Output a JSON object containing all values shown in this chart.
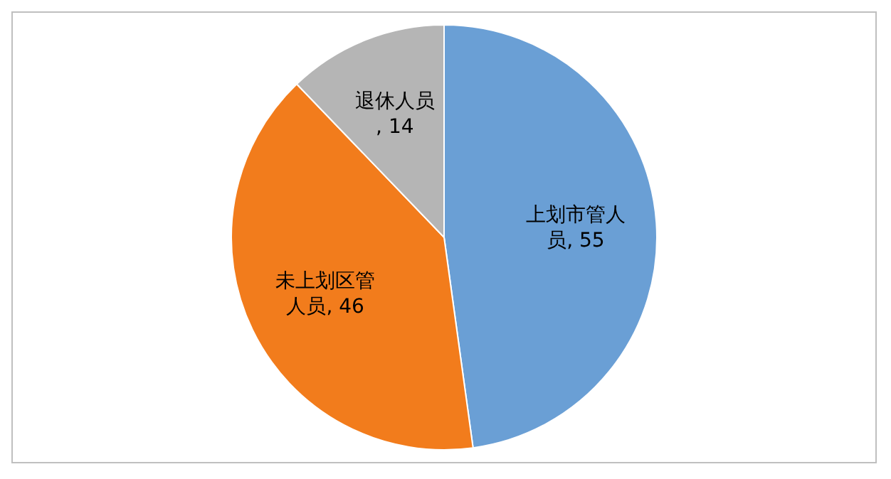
{
  "chart_data": {
    "type": "pie",
    "categories": [
      "上划市管人员",
      "未上划区管人员",
      "退休人员"
    ],
    "values": [
      55,
      46,
      14
    ],
    "value_labels": [
      ", 55",
      ", 46",
      ", 14"
    ],
    "colors": [
      "#6a9fd5",
      "#f27c1c",
      "#b5b5b5"
    ],
    "legend": false
  }
}
